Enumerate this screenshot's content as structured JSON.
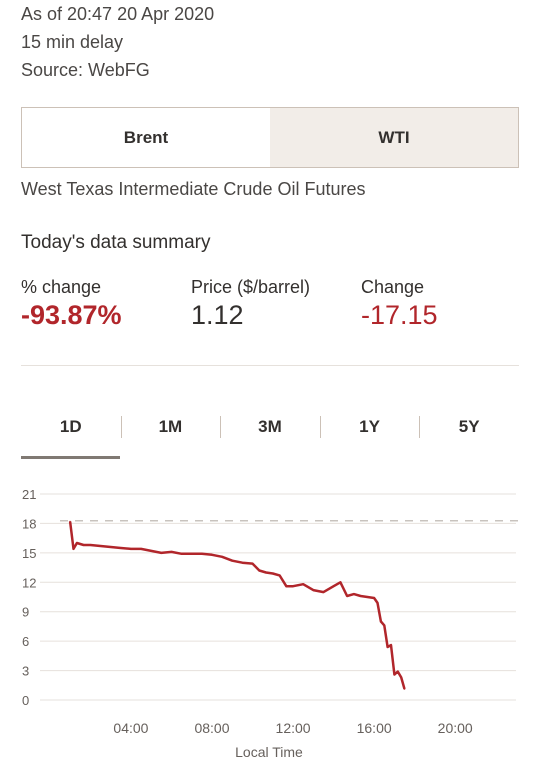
{
  "meta": {
    "as_of": "As of 20:47 20 Apr 2020",
    "delay": "15 min delay",
    "source": "Source: WebFG"
  },
  "toggle": {
    "options": [
      "Brent",
      "WTI"
    ],
    "selected": "WTI"
  },
  "subtitle": "West Texas Intermediate Crude Oil Futures",
  "summary": {
    "title": "Today's data summary",
    "pct_change_label": "% change",
    "pct_change_value": "-93.87%",
    "price_label": "Price ($/barrel)",
    "price_value": "1.12",
    "change_label": "Change",
    "change_value": "-17.15"
  },
  "tabs": {
    "items": [
      "1D",
      "1M",
      "3M",
      "1Y",
      "5Y"
    ],
    "selected": "1D"
  },
  "colors": {
    "line": "#b1262b",
    "negative": "#b1262b",
    "toggle_active_bg": "#f2ede8"
  },
  "chart_data": {
    "type": "line",
    "xlabel": "Local Time",
    "ylabel": "",
    "x_ticks": [
      "04:00",
      "08:00",
      "12:00",
      "16:00",
      "20:00"
    ],
    "y_ticks": [
      21,
      18,
      15,
      12,
      9,
      6,
      3,
      0
    ],
    "ylim": [
      0,
      21
    ],
    "reference_line": 18.27,
    "grid": true,
    "series": [
      {
        "x": [
          "01:00",
          "01:10",
          "01:20",
          "01:40",
          "02:00",
          "02:30",
          "03:00",
          "03:30",
          "04:00",
          "04:30",
          "05:00",
          "05:30",
          "06:00",
          "06:30",
          "07:00",
          "07:30",
          "08:00",
          "08:30",
          "09:00",
          "09:30",
          "10:00",
          "10:20",
          "10:40",
          "11:00",
          "11:20",
          "11:40",
          "12:00",
          "12:30",
          "13:00",
          "13:30",
          "14:00",
          "14:20",
          "14:40",
          "15:00",
          "15:20",
          "15:40",
          "16:00",
          "16:10",
          "16:20",
          "16:30",
          "16:40",
          "16:50",
          "17:00",
          "17:10",
          "17:20",
          "17:30"
        ],
        "y": [
          18.2,
          15.4,
          16.0,
          15.8,
          15.8,
          15.7,
          15.6,
          15.5,
          15.4,
          15.4,
          15.2,
          15.0,
          15.1,
          14.9,
          14.9,
          14.9,
          14.8,
          14.6,
          14.2,
          14.0,
          13.9,
          13.2,
          13.0,
          12.9,
          12.7,
          11.6,
          11.6,
          11.8,
          11.2,
          11.0,
          11.6,
          12.0,
          10.6,
          10.8,
          10.6,
          10.5,
          10.4,
          9.9,
          8.0,
          7.6,
          5.4,
          5.6,
          2.6,
          2.9,
          2.3,
          1.12
        ]
      }
    ]
  }
}
